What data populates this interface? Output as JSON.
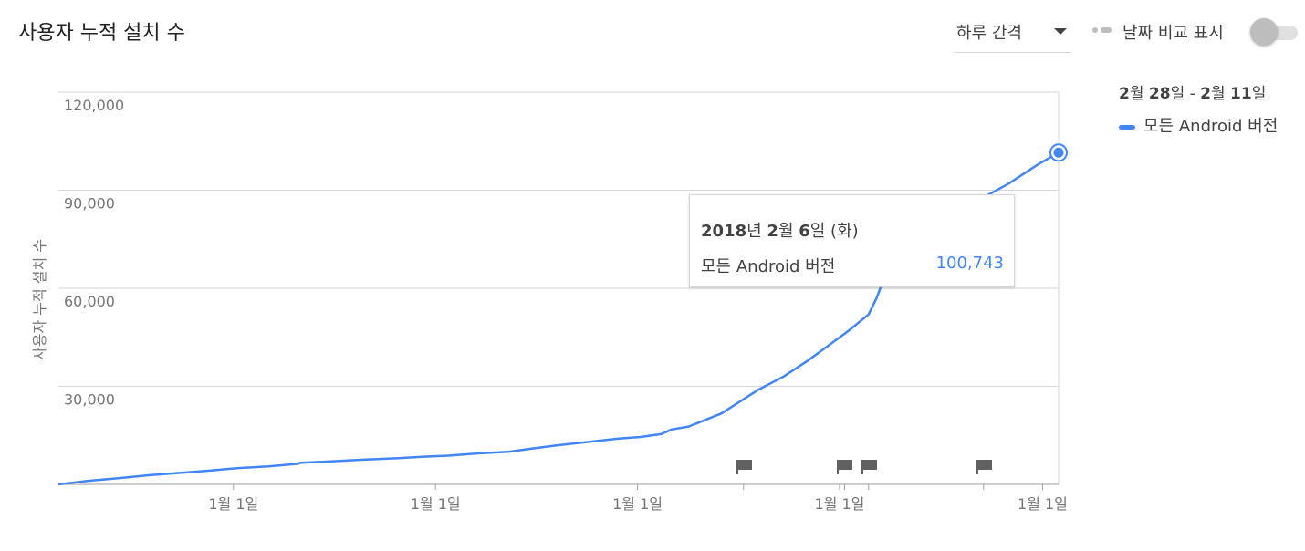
{
  "header": {
    "title": "사용자 누적 설치 수",
    "interval_label": "하루 간격",
    "compare_label": "날짜 비교 표시",
    "compare_enabled": false
  },
  "legend": {
    "date_range": {
      "start_month": "2",
      "start_month_unit": "월 ",
      "start_day": "28",
      "start_day_unit": "일 - ",
      "end_month": "2",
      "end_month_unit": "월 ",
      "end_day": "11",
      "end_day_unit": "일"
    },
    "series_label": "모든 Android 버전"
  },
  "tooltip": {
    "date_year": "2018",
    "date_year_unit": "년 ",
    "date_month": "2",
    "date_month_unit": "월 ",
    "date_day": "6",
    "date_day_unit": "일 (화)",
    "series_label": "모든 Android 버전",
    "value": "100,743"
  },
  "colors": {
    "series": "#4285f4",
    "grid": "#d6d6d6",
    "axis": "#757575",
    "annotation": "#616161"
  },
  "chart_data": {
    "type": "line",
    "ylabel": "사용자 누적 설치 수",
    "ylim": [
      0,
      120000
    ],
    "yticks": [
      0,
      30000,
      60000,
      90000,
      120000
    ],
    "ytick_labels": [
      "",
      "30,000",
      "60,000",
      "90,000",
      "120,000"
    ],
    "xlim": [
      0,
      100
    ],
    "xticks": [
      17.5,
      37.7,
      57.9,
      78.1,
      98.4
    ],
    "xtick_labels": [
      "1월 1일",
      "1월 1일",
      "1월 1일",
      "1월 1일",
      "1월 1일"
    ],
    "annotations_x": [
      68.5,
      78.6,
      81.0,
      92.5
    ],
    "highlight_x": 100,
    "series": [
      {
        "name": "모든 Android 버전",
        "x": [
          0,
          3,
          6,
          9,
          12,
          15,
          18,
          21,
          24,
          24.1,
          27,
          30,
          34,
          36.8,
          39,
          42,
          45,
          47.4,
          50,
          53,
          56,
          58.2,
          60.3,
          61.3,
          63,
          66.3,
          70,
          72.5,
          75,
          77,
          79,
          81,
          81.8,
          82.4,
          84,
          86,
          88.2,
          90,
          92,
          95,
          98,
          100
        ],
        "values": [
          0,
          1100,
          1900,
          2800,
          3500,
          4200,
          5000,
          5500,
          6300,
          6600,
          7000,
          7500,
          8000,
          8500,
          8800,
          9500,
          10000,
          11000,
          12000,
          13000,
          14000,
          14500,
          15400,
          16800,
          17700,
          21700,
          29000,
          33000,
          38000,
          42500,
          47000,
          52000,
          57000,
          61800,
          66000,
          71500,
          77000,
          81500,
          87000,
          92000,
          98000,
          101500
        ]
      }
    ]
  }
}
